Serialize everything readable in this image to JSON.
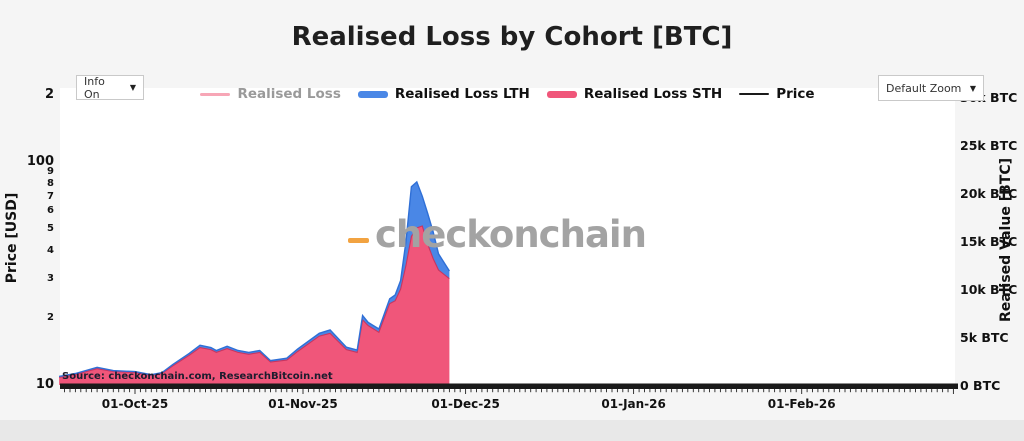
{
  "page": {
    "title": "Realised Loss by Cohort [BTC]"
  },
  "controls": {
    "info_label": "Info On",
    "zoom_label": "Default Zoom",
    "dropdown_arrow": "▼"
  },
  "legend": [
    {
      "label": "Realised Loss",
      "color": "#f7a6b6",
      "style": "thin",
      "dimmed": true
    },
    {
      "label": "Realised Loss LTH",
      "color": "#4a87e6",
      "style": "thick",
      "dimmed": false
    },
    {
      "label": "Realised Loss STH",
      "color": "#f0567a",
      "style": "thick",
      "dimmed": false
    },
    {
      "label": "Price",
      "color": "#1a1a1a",
      "style": "hair",
      "dimmed": false
    }
  ],
  "watermark": {
    "text": "checkonchain",
    "dash_color": "#f2a341"
  },
  "source_credit": "Source: checkonchain.com, ResearchBitcoin.net",
  "chart_data": {
    "type": "area",
    "title": "Realised Loss by Cohort [BTC]",
    "stacked": true,
    "legend_position": "top-center",
    "grid": "off",
    "x_axis": {
      "visible_range": [
        "2025-09-17",
        "2026-03-01"
      ],
      "ticks": [
        {
          "label": "01-Oct-25",
          "date": "2025-10-01"
        },
        {
          "label": "01-Nov-25",
          "date": "2025-11-01"
        },
        {
          "label": "01-Dec-25",
          "date": "2025-12-01"
        },
        {
          "label": "01-Jan-26",
          "date": "2026-01-01"
        },
        {
          "label": "01-Feb-26",
          "date": "2026-02-01"
        }
      ]
    },
    "y_left_axis": {
      "label": "Price [USD]",
      "scale": "log",
      "range": [
        10,
        250
      ],
      "ticks": [
        {
          "label": "10",
          "value": 10,
          "major": true
        },
        {
          "label": "2",
          "value": 20,
          "major": false
        },
        {
          "label": "3",
          "value": 30,
          "major": false
        },
        {
          "label": "4",
          "value": 40,
          "major": false
        },
        {
          "label": "5",
          "value": 50,
          "major": false
        },
        {
          "label": "6",
          "value": 60,
          "major": false
        },
        {
          "label": "7",
          "value": 70,
          "major": false
        },
        {
          "label": "8",
          "value": 80,
          "major": false
        },
        {
          "label": "9",
          "value": 90,
          "major": false
        },
        {
          "label": "100",
          "value": 100,
          "major": true
        },
        {
          "label": "2",
          "value": 200,
          "major": true
        }
      ]
    },
    "y_right_axis": {
      "label": "Realised Value [BTC]",
      "scale": "linear",
      "range_btc": [
        0,
        30000
      ],
      "ticks": [
        {
          "label": "0 BTC",
          "value": 0
        },
        {
          "label": "5k BTC",
          "value": 5000
        },
        {
          "label": "10k BTC",
          "value": 10000
        },
        {
          "label": "15k BTC",
          "value": 15000
        },
        {
          "label": "20k BTC",
          "value": 20000
        },
        {
          "label": "25k BTC",
          "value": 25000
        },
        {
          "label": "30k BTC",
          "value": 30000
        }
      ]
    },
    "dates": [
      "2025-09-17",
      "2025-09-20",
      "2025-09-24",
      "2025-09-27",
      "2025-10-01",
      "2025-10-04",
      "2025-10-06",
      "2025-10-08",
      "2025-10-11",
      "2025-10-13",
      "2025-10-15",
      "2025-10-16",
      "2025-10-18",
      "2025-10-20",
      "2025-10-22",
      "2025-10-24",
      "2025-10-26",
      "2025-10-29",
      "2025-10-31",
      "2025-11-04",
      "2025-11-06",
      "2025-11-09",
      "2025-11-11",
      "2025-11-12",
      "2025-11-13",
      "2025-11-15",
      "2025-11-17",
      "2025-11-18",
      "2025-11-19",
      "2025-11-20",
      "2025-11-21",
      "2025-11-22",
      "2025-11-23",
      "2025-11-24",
      "2025-11-25",
      "2025-11-26",
      "2025-11-28"
    ],
    "series": [
      {
        "name": "Realised Loss STH",
        "color": "#f0567a",
        "values_btc": [
          800,
          1100,
          1700,
          1400,
          1300,
          1000,
          1200,
          2000,
          3100,
          3900,
          3700,
          3400,
          3800,
          3400,
          3200,
          3400,
          2400,
          2600,
          3500,
          5100,
          5400,
          3700,
          3400,
          6800,
          6200,
          5500,
          8500,
          8800,
          10000,
          12500,
          15500,
          16400,
          16600,
          14700,
          13200,
          12000,
          11100
        ]
      },
      {
        "name": "Realised Loss LTH",
        "color": "#4a87e6",
        "values_btc": [
          100,
          100,
          150,
          100,
          100,
          80,
          100,
          150,
          200,
          250,
          200,
          200,
          250,
          200,
          200,
          200,
          150,
          200,
          250,
          300,
          350,
          250,
          250,
          450,
          350,
          350,
          500,
          600,
          900,
          2500,
          5200,
          4800,
          3100,
          3200,
          2800,
          1700,
          800
        ]
      },
      {
        "name": "Realised Loss",
        "color": "#f7a6b6",
        "visible": false,
        "values_btc": []
      },
      {
        "name": "Price",
        "color": "#1a1a1a",
        "note": "renders as thick black line along the bottom axis for the full visible range",
        "values_btc": []
      }
    ],
    "peak_total_btc": 21200,
    "peak_date": "2025-11-22"
  }
}
